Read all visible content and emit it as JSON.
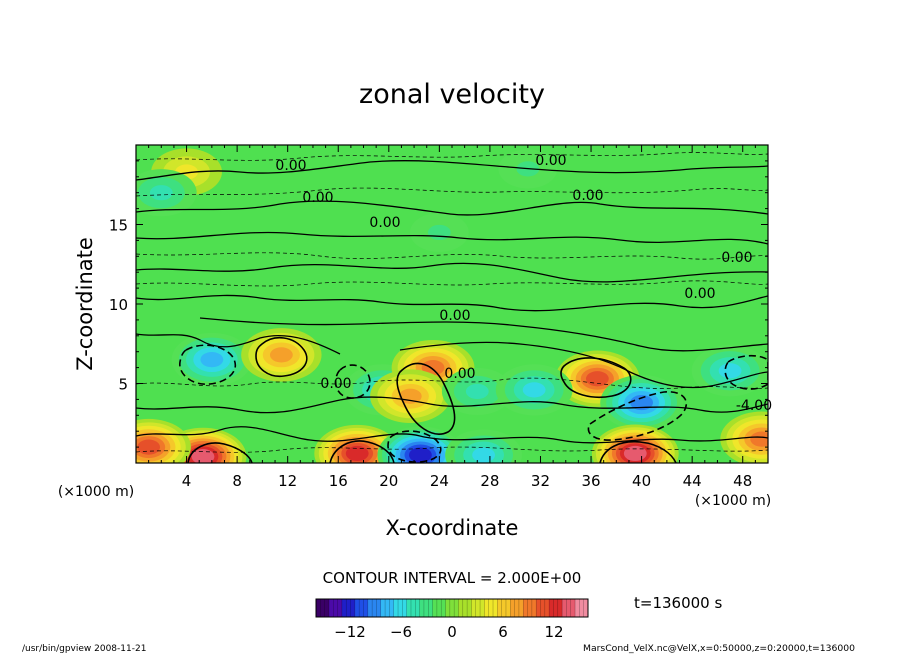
{
  "chart_data": {
    "type": "heatmap",
    "title": "zonal velocity",
    "xlabel": "X-coordinate",
    "ylabel": "Z-coordinate",
    "x_unit": "(×1000 m)",
    "y_unit": "(×1000 m)",
    "xlim": [
      0,
      50
    ],
    "ylim": [
      0,
      20
    ],
    "x_ticks": [
      4,
      8,
      12,
      16,
      20,
      24,
      28,
      32,
      36,
      40,
      44,
      48
    ],
    "y_ticks": [
      5,
      10,
      15
    ],
    "contour_interval_text": "CONTOUR INTERVAL = 2.000E+00",
    "contour_labels": [
      "0.00",
      "0.00",
      "0.00",
      "0.00",
      "0.00",
      "0.00",
      "0.00",
      "0.00",
      "0.00",
      "0.00",
      "-4.00"
    ],
    "time_label": "t=136000 s",
    "colorbar": {
      "range": [
        -16,
        16
      ],
      "ticks": [
        -12,
        -6,
        0,
        6,
        12
      ],
      "colors": [
        "#3a0066",
        "#4b0aa8",
        "#1f1fc8",
        "#1f4fe6",
        "#2a86f0",
        "#33b8f5",
        "#33d9e6",
        "#33e0b0",
        "#3ee080",
        "#55e055",
        "#7fe03a",
        "#a8e02a",
        "#d1e62a",
        "#f0e62a",
        "#f5c82a",
        "#f5a02a",
        "#f0782a",
        "#e6502a",
        "#d92a2a",
        "#e65a6e",
        "#f08ca0"
      ]
    },
    "features": [
      {
        "x": 6,
        "z": 6.5,
        "value": -8
      },
      {
        "x": 11.5,
        "z": 6.8,
        "value": 7
      },
      {
        "x": 19.5,
        "z": 4.6,
        "value": -6
      },
      {
        "x": 23.5,
        "z": 6.0,
        "value": 9
      },
      {
        "x": 21.7,
        "z": 4.2,
        "value": 8
      },
      {
        "x": 27,
        "z": 4.5,
        "value": -5
      },
      {
        "x": 36.5,
        "z": 5.3,
        "value": 11
      },
      {
        "x": 31.5,
        "z": 4.6,
        "value": -6
      },
      {
        "x": 40,
        "z": 3.8,
        "value": -9
      },
      {
        "x": 47,
        "z": 5.8,
        "value": -6
      },
      {
        "x": 5.3,
        "z": 0.4,
        "value": 14
      },
      {
        "x": 1,
        "z": 1.0,
        "value": 10
      },
      {
        "x": 17.5,
        "z": 0.6,
        "value": 12
      },
      {
        "x": 22.5,
        "z": 0.5,
        "value": -12
      },
      {
        "x": 39.5,
        "z": 0.6,
        "value": 13
      },
      {
        "x": 27.5,
        "z": 0.5,
        "value": -6
      },
      {
        "x": 49.5,
        "z": 1.5,
        "value": 9
      },
      {
        "x": 4,
        "z": 18.3,
        "value": 4
      },
      {
        "x": 2,
        "z": 17,
        "value": -4
      },
      {
        "x": 31,
        "z": 18.5,
        "value": -3
      },
      {
        "x": 24,
        "z": 14.5,
        "value": -3
      }
    ]
  },
  "footer": {
    "program": "/usr/bin/gpview   2008-11-21",
    "source": "MarsCond_VelX.nc@VelX,x=0:50000,z=0:20000,t=136000"
  }
}
